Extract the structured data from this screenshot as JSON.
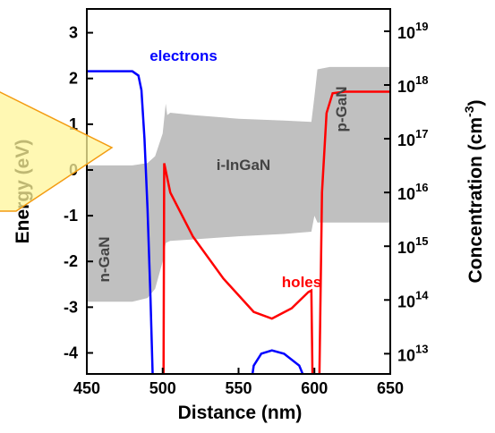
{
  "chart_data": {
    "type": "band-diagram",
    "xlabel": "Distance (nm)",
    "ylabel": "Energy (eV)",
    "y2label": {
      "text": "Concentration (cm",
      "sup": "-3",
      "end": ")"
    },
    "xlim": [
      450,
      650
    ],
    "xticks": [
      450,
      500,
      550,
      600,
      650
    ],
    "ylim": [
      -4.46,
      3.52
    ],
    "yticks": [
      -4,
      -3,
      -2,
      -1,
      0,
      1,
      2,
      3
    ],
    "y2lim": [
      4200000000000.0,
      2.6e+19
    ],
    "y2log": true,
    "y2ticks": [
      {
        "value": 10000000000000.0,
        "label": "10",
        "exponent": "13"
      },
      {
        "value": 100000000000000.0,
        "label": "10",
        "exponent": "14"
      },
      {
        "value": 1000000000000000.0,
        "label": "10",
        "exponent": "15"
      },
      {
        "value": 1e+16,
        "label": "10",
        "exponent": "16"
      },
      {
        "value": 1e+17,
        "label": "10",
        "exponent": "17"
      },
      {
        "value": 1e+18,
        "label": "10",
        "exponent": "18"
      },
      {
        "value": 1e+19,
        "label": "10",
        "exponent": "19"
      }
    ],
    "band": {
      "color": "#c0c0c0",
      "x": [
        450,
        480,
        490,
        495,
        500,
        502,
        503,
        505,
        520,
        550,
        580,
        598,
        600,
        602,
        610,
        650
      ],
      "upper": [
        0.1,
        0.1,
        0.15,
        0.3,
        0.8,
        1.45,
        1.2,
        1.25,
        1.2,
        1.12,
        1.08,
        1.05,
        1.6,
        2.2,
        2.25,
        2.25
      ],
      "lower": [
        -2.88,
        -2.88,
        -2.8,
        -2.6,
        -2.0,
        -1.6,
        -1.58,
        -1.55,
        -1.52,
        -1.45,
        -1.4,
        -1.35,
        -1.0,
        -1.15,
        -1.15,
        -1.15
      ]
    },
    "series": [
      {
        "name": "electrons",
        "color": "#0000ff",
        "axis": "y2",
        "x": [
          450,
          480,
          484,
          486,
          488,
          490,
          492,
          494,
          525,
          556,
          560,
          565,
          572,
          580,
          590,
          597
        ],
        "values": [
          1.8e+18,
          1.8e+18,
          1.5e+18,
          8e+17,
          1e+17,
          5000000000000000.0,
          100000000000000.0,
          1000000000000.0,
          null,
          1000000000000.0,
          6000000000000.0,
          10000000000000.0,
          11500000000000.0,
          10000000000000.0,
          6000000000000.0,
          2000000000000.0
        ]
      },
      {
        "name": "holes",
        "color": "#ff0000",
        "axis": "y2",
        "x": [
          500.5,
          501,
          505,
          520,
          540,
          560,
          572,
          585,
          596,
          598,
          599,
          601,
          603,
          605,
          608,
          612,
          620,
          650
        ],
        "values": [
          1000000000000.0,
          3.5e+16,
          1e+16,
          1500000000000000.0,
          250000000000000.0,
          60000000000000.0,
          45000000000000.0,
          70000000000000.0,
          140000000000000.0,
          150000000000000.0,
          1000000000000.0,
          null,
          1000000000000.0,
          1e+16,
          3e+17,
          7e+17,
          7.5e+17,
          7.5e+17
        ]
      }
    ],
    "annotations": [
      "i-InGaN",
      "n-GaN",
      "p-GaN"
    ]
  }
}
